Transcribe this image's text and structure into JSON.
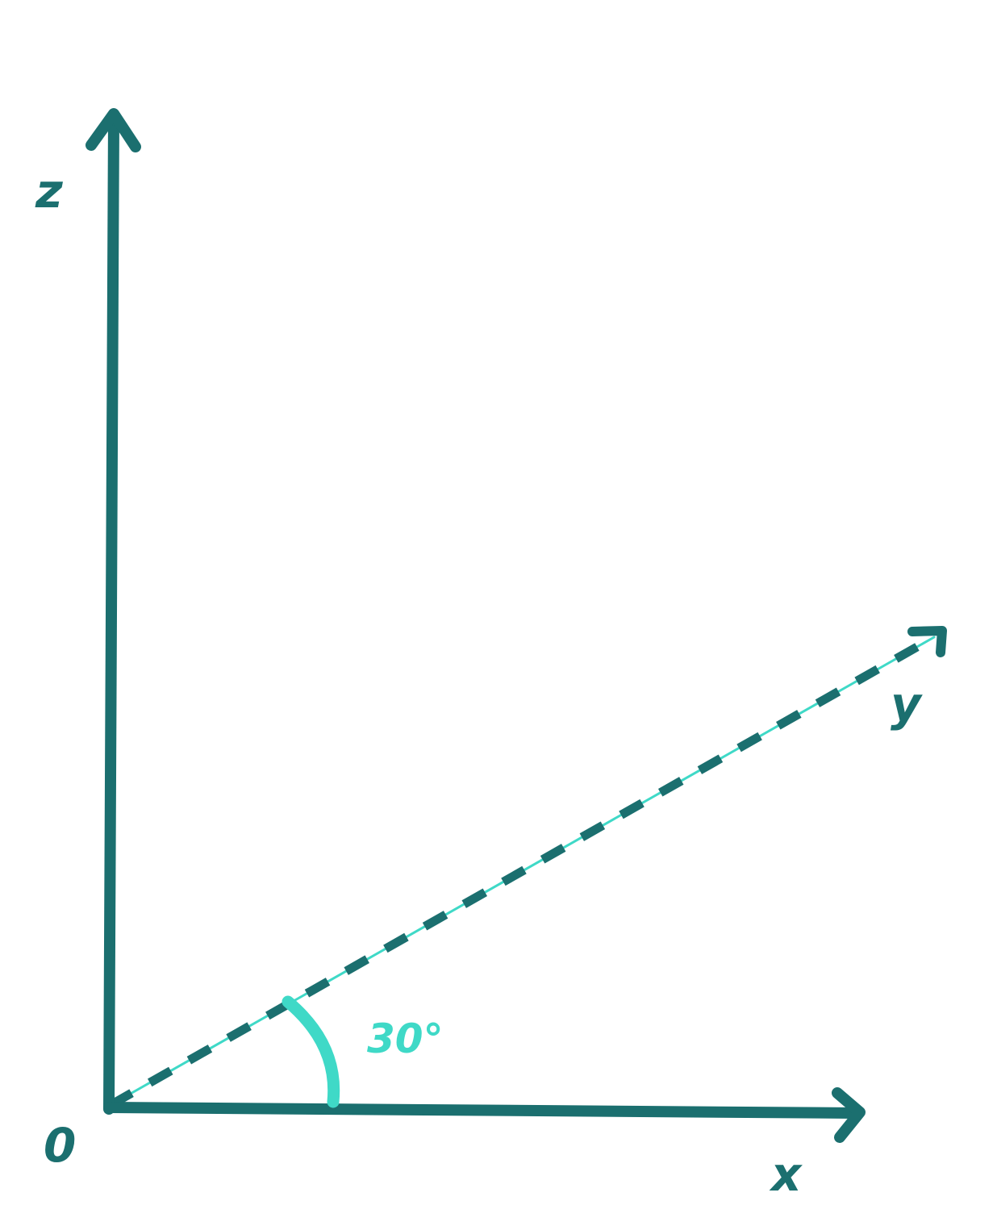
{
  "colors": {
    "axis": "#1b6f6f",
    "accent": "#3fd9c7",
    "background": "#ffffff"
  },
  "labels": {
    "z": "z",
    "y": "y",
    "x": "x",
    "origin": "0",
    "angle": "30°"
  },
  "angle_degrees": 30
}
